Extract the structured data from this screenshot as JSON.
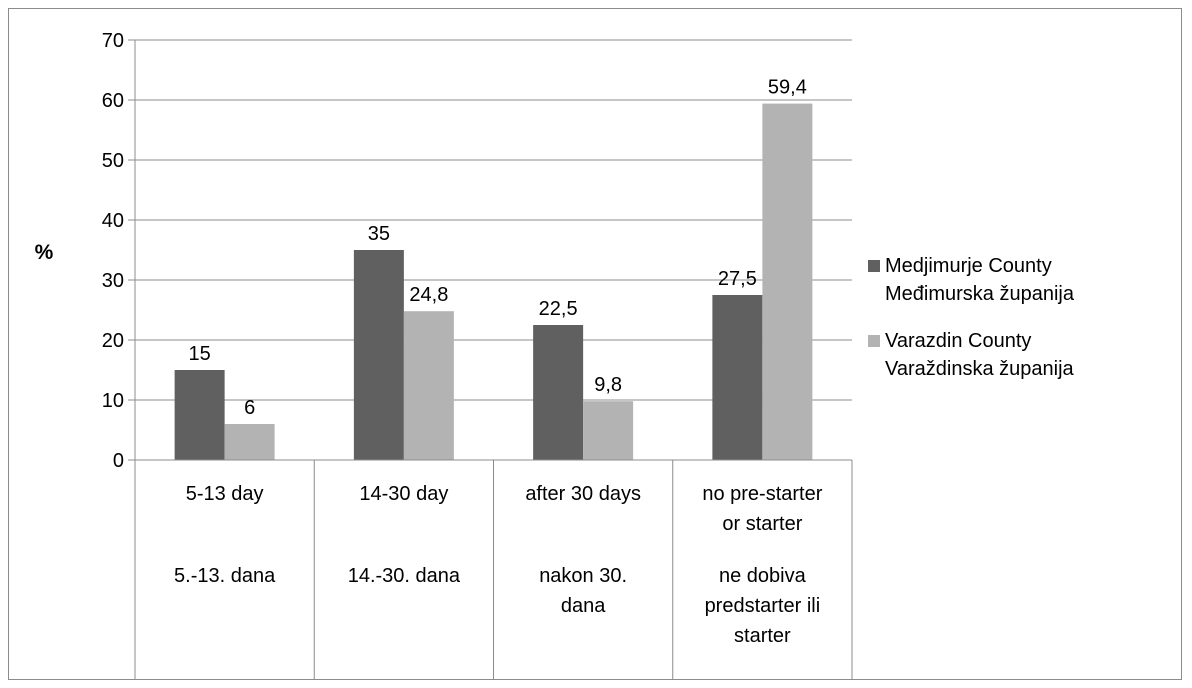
{
  "chart_data": {
    "type": "bar",
    "ylabel": "%",
    "ylim": [
      0,
      70
    ],
    "ytick_step": 10,
    "grid": true,
    "legend_position": "right",
    "categories": [
      {
        "en": "5-13 day",
        "hr": [
          "5.-13. dana"
        ]
      },
      {
        "en": "14-30 day",
        "hr": [
          "14.-30. dana"
        ]
      },
      {
        "en": "after 30 days",
        "hr": [
          "nakon 30.",
          "dana"
        ]
      },
      {
        "en_lines": [
          "no pre-starter",
          "or starter"
        ],
        "hr": [
          "ne dobiva",
          "predstarter ili",
          "starter"
        ]
      }
    ],
    "series": [
      {
        "name": "Medjimurje County Međimurska županija",
        "legend_lines": [
          "Medjimurje County",
          "Međimurska županija"
        ],
        "color": "#606060",
        "values": [
          15,
          35,
          22.5,
          27.5
        ],
        "labels": [
          "15",
          "35",
          "22,5",
          "27,5"
        ]
      },
      {
        "name": "Varazdin County Varaždinska županija",
        "legend_lines": [
          "Varazdin County",
          "Varaždinska županija"
        ],
        "color": "#b3b3b3",
        "values": [
          6,
          24.8,
          9.8,
          59.4
        ],
        "labels": [
          "6",
          "24,8",
          "9,8",
          "59,4"
        ]
      }
    ]
  }
}
